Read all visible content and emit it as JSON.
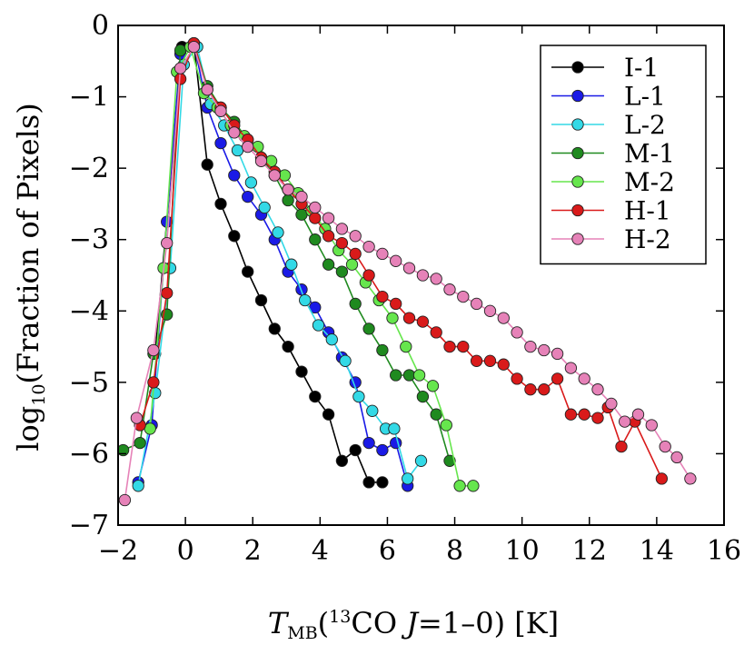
{
  "chart_data": {
    "type": "line",
    "xlabel": {
      "var": "T",
      "sub": "MB",
      "pre": "(",
      "sup": "13",
      "mid": "CO ",
      "ital": "J",
      "post": "=1–0) [K]"
    },
    "ylabel": {
      "pre": "log",
      "sub": "10",
      "post": "(Fraction of Pixels)"
    },
    "xlim": [
      -2,
      16
    ],
    "ylim": [
      -7,
      0
    ],
    "xticks": [
      -2,
      0,
      2,
      4,
      6,
      8,
      10,
      12,
      14,
      16
    ],
    "yticks": [
      0,
      -1,
      -2,
      -3,
      -4,
      -5,
      -6,
      -7
    ],
    "xtick_labels": [
      "−2",
      "0",
      "2",
      "4",
      "6",
      "8",
      "10",
      "12",
      "14",
      "16"
    ],
    "ytick_labels": [
      "0",
      "−1",
      "−2",
      "−3",
      "−4",
      "−5",
      "−6",
      "−7"
    ],
    "legend_position": "top-right",
    "series": [
      {
        "name": "I-1",
        "color": "#000000",
        "x": [
          -0.9,
          -0.1,
          0.25,
          0.65,
          1.05,
          1.45,
          1.85,
          2.25,
          2.65,
          3.05,
          3.45,
          3.85,
          4.25,
          4.65,
          5.05,
          5.45,
          5.85
        ],
        "y": [
          -4.6,
          -0.3,
          -0.25,
          -1.95,
          -2.5,
          -2.95,
          -3.45,
          -3.85,
          -4.25,
          -4.5,
          -4.85,
          -5.2,
          -5.45,
          -6.1,
          -5.95,
          -6.4,
          -6.4
        ]
      },
      {
        "name": "L-1",
        "color": "#1a1ae6",
        "x": [
          -1.4,
          -1.0,
          -0.55,
          -0.15,
          0.25,
          0.65,
          1.05,
          1.45,
          1.85,
          2.25,
          2.65,
          3.05,
          3.45,
          3.85,
          4.25,
          4.65,
          5.05,
          5.45,
          5.85,
          6.25,
          6.6
        ],
        "y": [
          -6.4,
          -5.6,
          -2.75,
          -0.4,
          -0.25,
          -1.15,
          -1.65,
          -2.1,
          -2.4,
          -2.65,
          -3.0,
          -3.45,
          -3.7,
          -3.95,
          -4.3,
          -4.65,
          -5.0,
          -5.85,
          -5.95,
          -5.85,
          -6.45
        ]
      },
      {
        "name": "L-2",
        "color": "#33d9e6",
        "x": [
          -1.4,
          -0.9,
          -0.45,
          -0.05,
          0.35,
          0.75,
          1.15,
          1.55,
          1.95,
          2.35,
          2.75,
          3.15,
          3.55,
          3.95,
          4.35,
          4.75,
          5.15,
          5.55,
          5.95,
          6.2,
          6.6,
          7.0
        ],
        "y": [
          -6.45,
          -5.15,
          -3.4,
          -0.55,
          -0.3,
          -1.1,
          -1.4,
          -1.75,
          -2.2,
          -2.55,
          -2.9,
          -3.35,
          -3.85,
          -4.2,
          -4.4,
          -4.7,
          -5.2,
          -5.4,
          -5.65,
          -5.65,
          -6.35,
          -6.1
        ]
      },
      {
        "name": "M-1",
        "color": "#1f8a1f",
        "x": [
          -1.85,
          -1.35,
          -0.95,
          -0.55,
          -0.15,
          0.25,
          0.65,
          1.05,
          1.45,
          1.85,
          2.25,
          2.65,
          3.05,
          3.45,
          3.85,
          4.25,
          4.65,
          5.05,
          5.45,
          5.85,
          6.25,
          6.65,
          7.05,
          7.45,
          7.85
        ],
        "y": [
          -5.95,
          -5.85,
          -4.6,
          -4.05,
          -0.35,
          -0.25,
          -0.85,
          -1.15,
          -1.35,
          -1.6,
          -1.85,
          -2.1,
          -2.45,
          -2.65,
          -3.0,
          -3.35,
          -3.45,
          -3.9,
          -4.25,
          -4.55,
          -4.9,
          -4.9,
          -5.2,
          -5.45,
          -6.1
        ]
      },
      {
        "name": "M-2",
        "color": "#66e64d",
        "x": [
          -1.05,
          -0.65,
          -0.25,
          0.15,
          0.55,
          0.95,
          1.35,
          1.75,
          2.15,
          2.55,
          2.95,
          3.35,
          3.75,
          4.15,
          4.55,
          4.95,
          5.35,
          5.75,
          6.15,
          6.55,
          6.95,
          7.35,
          7.75,
          8.15,
          8.55
        ],
        "y": [
          -5.65,
          -3.4,
          -0.65,
          -0.3,
          -0.95,
          -1.15,
          -1.4,
          -1.55,
          -1.7,
          -1.9,
          -2.1,
          -2.35,
          -2.6,
          -2.85,
          -3.15,
          -3.35,
          -3.6,
          -3.85,
          -4.1,
          -4.5,
          -4.9,
          -5.05,
          -5.6,
          -6.45,
          -6.45
        ]
      },
      {
        "name": "H-1",
        "color": "#d91a1a",
        "x": [
          -1.35,
          -0.95,
          -0.55,
          -0.15,
          0.25,
          0.65,
          1.05,
          1.45,
          1.85,
          2.25,
          2.65,
          3.05,
          3.45,
          3.85,
          4.25,
          4.65,
          5.05,
          5.45,
          5.85,
          6.25,
          6.65,
          7.05,
          7.45,
          7.85,
          8.25,
          8.65,
          9.05,
          9.45,
          9.85,
          10.25,
          10.65,
          11.05,
          11.45,
          11.85,
          12.25,
          12.55,
          12.95,
          13.35,
          14.15
        ],
        "y": [
          -5.6,
          -5.0,
          -3.75,
          -0.75,
          -0.25,
          -0.9,
          -1.15,
          -1.4,
          -1.6,
          -1.85,
          -2.05,
          -2.3,
          -2.5,
          -2.7,
          -2.95,
          -3.05,
          -3.2,
          -3.5,
          -3.8,
          -3.9,
          -4.1,
          -4.15,
          -4.3,
          -4.5,
          -4.5,
          -4.7,
          -4.7,
          -4.75,
          -4.95,
          -5.1,
          -5.1,
          -4.95,
          -5.45,
          -5.45,
          -5.5,
          -5.35,
          -5.9,
          -5.55,
          -6.35
        ]
      },
      {
        "name": "H-2",
        "color": "#e682b8",
        "x": [
          -1.8,
          -1.45,
          -0.95,
          -0.55,
          -0.15,
          0.25,
          0.65,
          1.05,
          1.45,
          1.85,
          2.25,
          2.65,
          3.05,
          3.45,
          3.85,
          4.25,
          4.65,
          5.05,
          5.45,
          5.85,
          6.25,
          6.65,
          7.05,
          7.45,
          7.85,
          8.25,
          8.65,
          9.05,
          9.45,
          9.85,
          10.25,
          10.65,
          11.05,
          11.45,
          11.85,
          12.25,
          12.65,
          13.05,
          13.45,
          13.85,
          14.25,
          14.6,
          15.0
        ],
        "y": [
          -6.65,
          -5.5,
          -4.55,
          -3.05,
          -0.6,
          -0.3,
          -0.9,
          -1.2,
          -1.5,
          -1.7,
          -1.9,
          -2.1,
          -2.3,
          -2.4,
          -2.55,
          -2.7,
          -2.85,
          -2.95,
          -3.1,
          -3.2,
          -3.3,
          -3.4,
          -3.5,
          -3.55,
          -3.7,
          -3.8,
          -3.9,
          -4.0,
          -4.1,
          -4.3,
          -4.5,
          -4.55,
          -4.6,
          -4.8,
          -4.95,
          -5.1,
          -5.3,
          -5.55,
          -5.45,
          -5.6,
          -5.9,
          -6.05,
          -6.35
        ]
      }
    ]
  }
}
